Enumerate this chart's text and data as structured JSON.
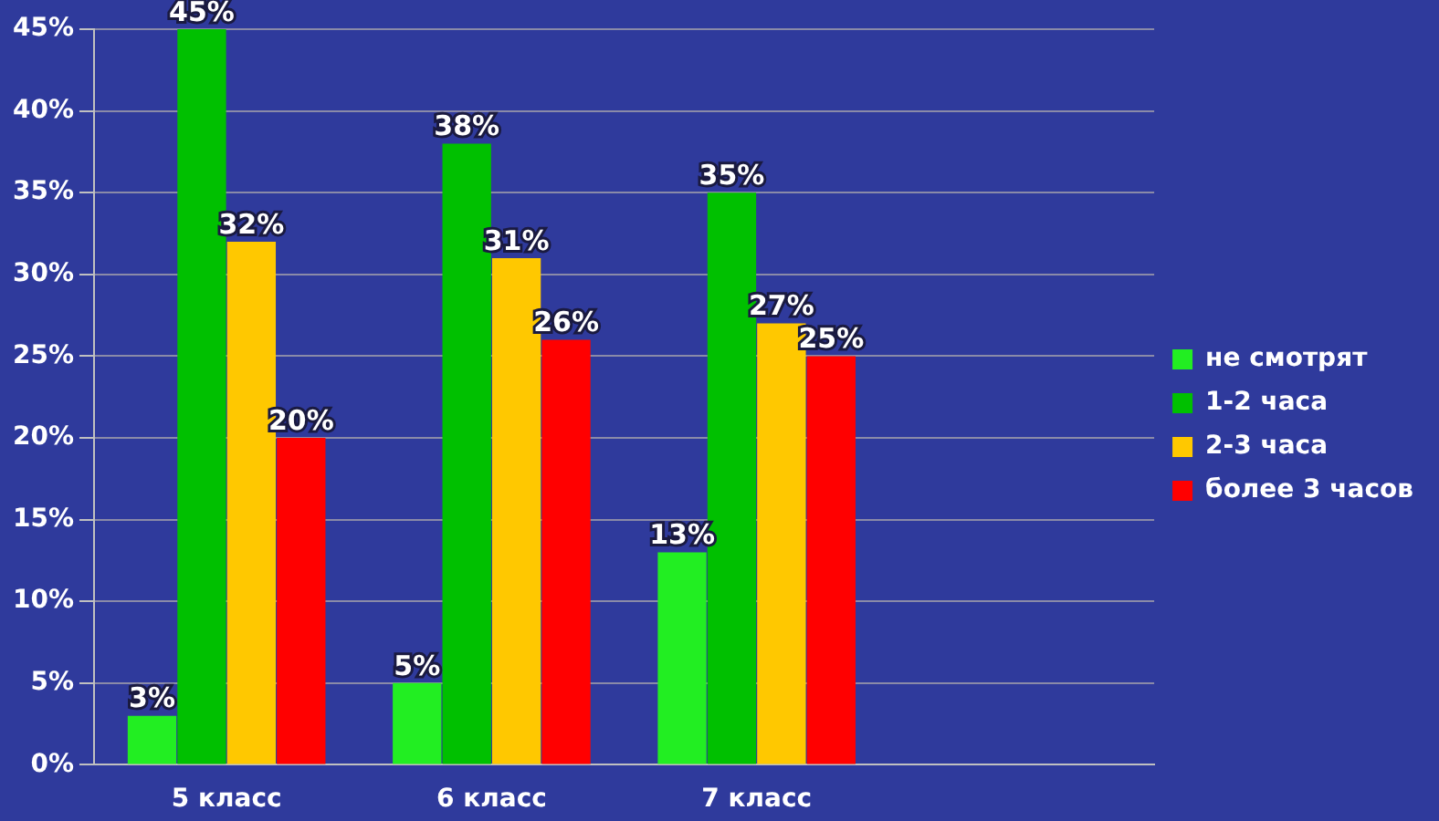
{
  "chart_data": {
    "type": "bar",
    "categories": [
      "5 класс",
      "6 класс",
      "7 класс",
      null
    ],
    "series": [
      {
        "name": "не смотрят",
        "color": "#22ee22",
        "values": [
          3,
          5,
          13,
          null
        ],
        "value_labels": [
          "3%",
          "5%",
          "13%",
          null
        ]
      },
      {
        "name": "1-2 часа",
        "color": "#00c000",
        "values": [
          45,
          38,
          35,
          null
        ],
        "value_labels": [
          "45%",
          "38%",
          "35%",
          null
        ]
      },
      {
        "name": "2-3 часа",
        "color": "#ffc800",
        "values": [
          32,
          31,
          27,
          null
        ],
        "value_labels": [
          "32%",
          "31%",
          "27%",
          null
        ]
      },
      {
        "name": "более 3 часов",
        "color": "#ff0000",
        "values": [
          20,
          26,
          25,
          null
        ],
        "value_labels": [
          "20%",
          "26%",
          "25%",
          null
        ]
      }
    ],
    "ylim": [
      0,
      45
    ],
    "yticks": [
      {
        "value": 0,
        "label": "0%"
      },
      {
        "value": 5,
        "label": "5%"
      },
      {
        "value": 10,
        "label": "10%"
      },
      {
        "value": 15,
        "label": "15%"
      },
      {
        "value": 20,
        "label": "20%"
      },
      {
        "value": 25,
        "label": "25%"
      },
      {
        "value": 30,
        "label": "30%"
      },
      {
        "value": 35,
        "label": "35%"
      },
      {
        "value": 40,
        "label": "40%"
      },
      {
        "value": 45,
        "label": "45%"
      }
    ],
    "grid": "y",
    "legend": "right"
  }
}
